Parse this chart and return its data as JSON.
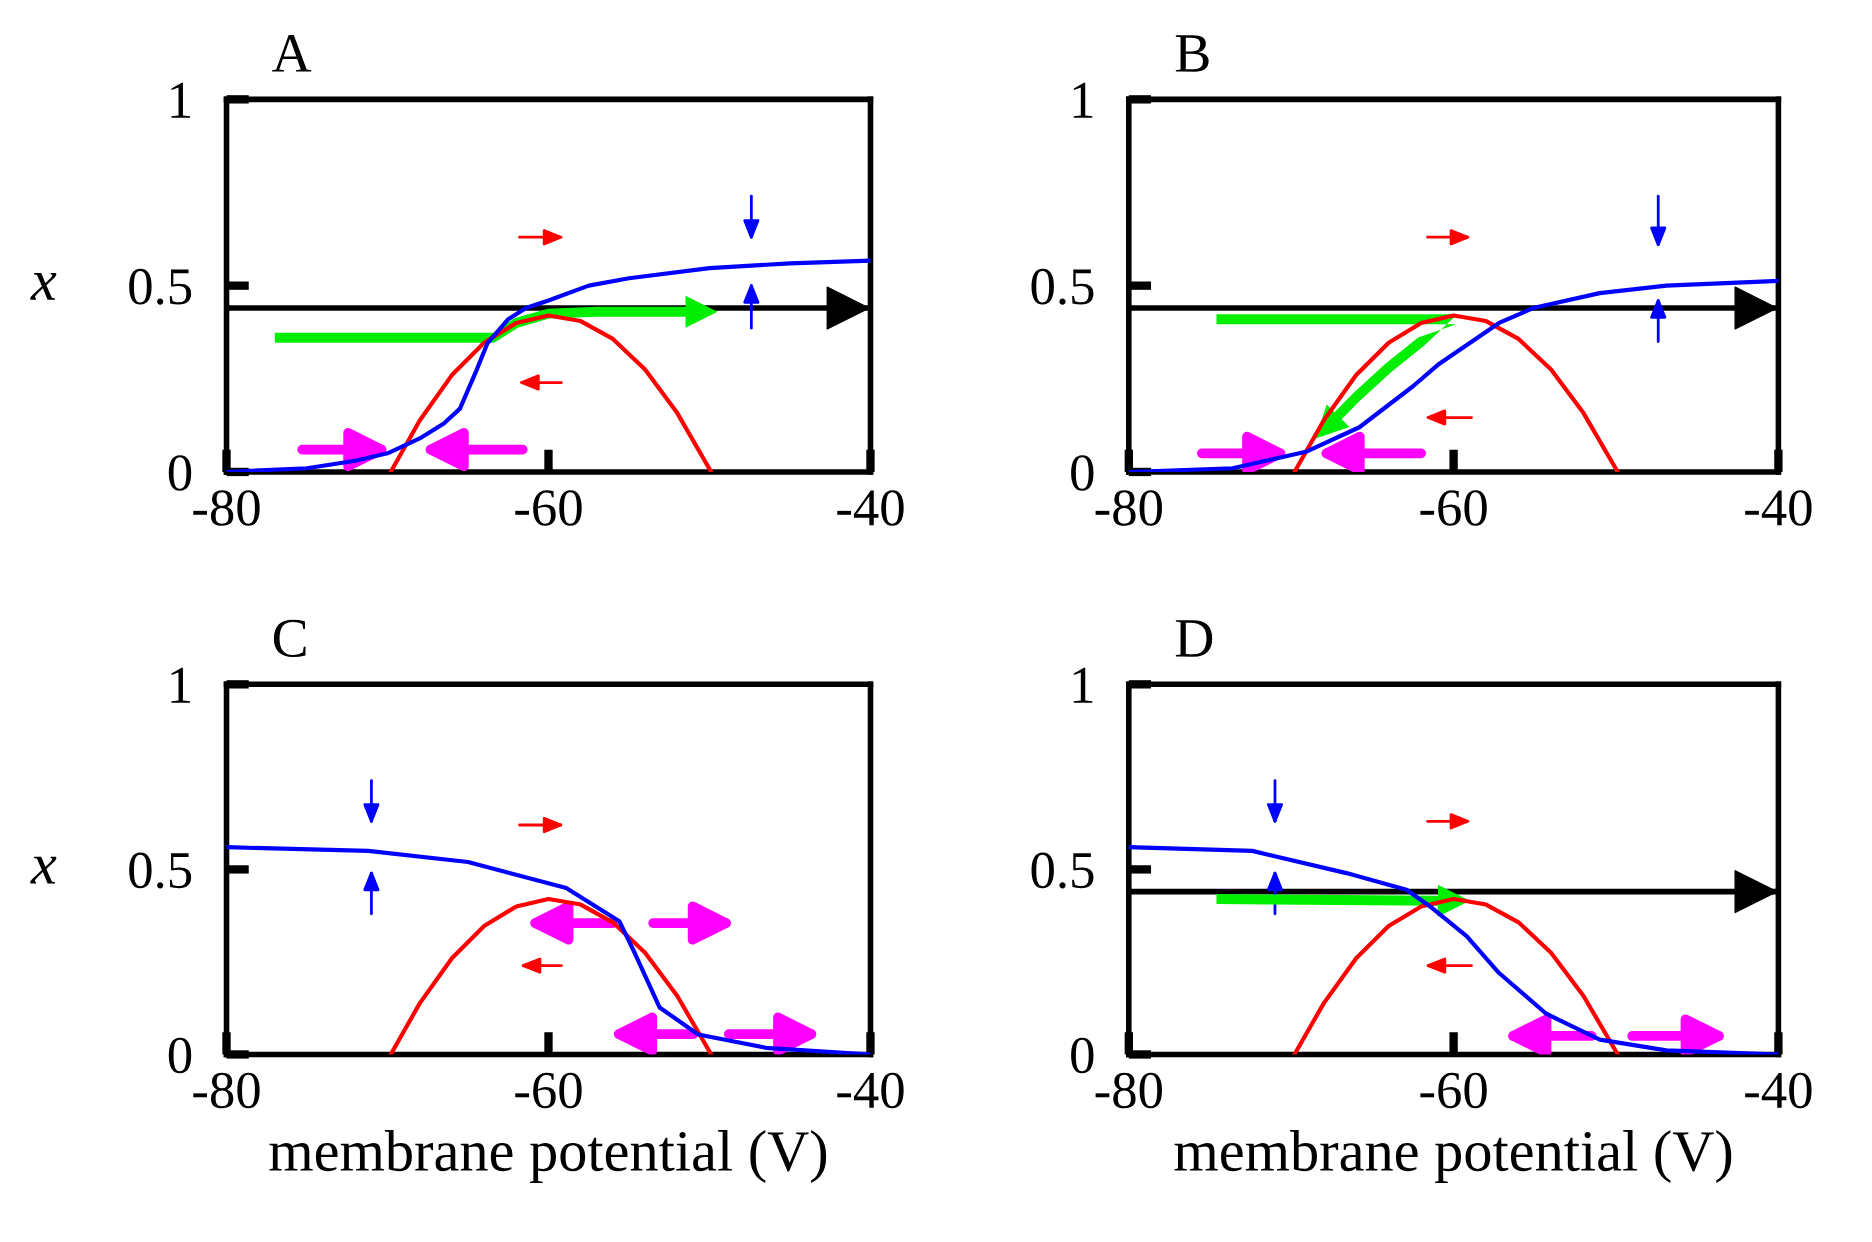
{
  "chart_data": [
    {
      "type": "line",
      "title": "A",
      "ylabel": "x",
      "xlim": [
        -80,
        -40
      ],
      "ylim": [
        0,
        1
      ],
      "xticks": [
        -80,
        -60,
        -40
      ],
      "yticks": [
        0,
        0.5,
        1
      ],
      "grid": false,
      "series": [
        {
          "color": "#ff0000",
          "x": [
            -69.8,
            -68,
            -66,
            -64,
            -62,
            -60,
            -58,
            -56,
            -54,
            -52,
            -50,
            -49.9
          ],
          "values": [
            0,
            0.138,
            0.26,
            0.347,
            0.4,
            0.42,
            0.405,
            0.357,
            0.275,
            0.158,
            0.008,
            0
          ]
        },
        {
          "color": "#0000ff",
          "x": [
            -80,
            -75,
            -72,
            -70,
            -68,
            -66.5,
            -65.5,
            -64.5,
            -63.8,
            -62.5,
            -61.4,
            -60,
            -57.5,
            -55,
            -50,
            -45,
            -40
          ],
          "values": [
            0,
            0.01,
            0.03,
            0.05,
            0.09,
            0.13,
            0.17,
            0.27,
            0.345,
            0.41,
            0.44,
            0.46,
            0.5,
            0.52,
            0.547,
            0.56,
            0.567
          ]
        }
      ],
      "ref_lines": [
        {
          "axis": "y",
          "value": 0.44,
          "color": "#000000"
        }
      ]
    },
    {
      "type": "line",
      "title": "B",
      "xlim": [
        -80,
        -40
      ],
      "ylim": [
        0,
        1
      ],
      "xticks": [
        -80,
        -60,
        -40
      ],
      "yticks": [
        0,
        0.5,
        1
      ],
      "grid": false,
      "series": [
        {
          "color": "#ff0000",
          "x": [
            -69.8,
            -68,
            -66,
            -64,
            -62,
            -60,
            -58,
            -56,
            -54,
            -52,
            -50,
            -49.9
          ],
          "values": [
            0,
            0.138,
            0.26,
            0.347,
            0.4,
            0.42,
            0.405,
            0.357,
            0.275,
            0.158,
            0.008,
            0
          ]
        },
        {
          "color": "#0000ff",
          "x": [
            -80,
            -73.6,
            -69.1,
            -65.8,
            -62.5,
            -60.9,
            -57.2,
            -55.1,
            -51,
            -46.9,
            -40
          ],
          "values": [
            0,
            0.01,
            0.054,
            0.12,
            0.23,
            0.29,
            0.4,
            0.44,
            0.48,
            0.5,
            0.513
          ]
        }
      ],
      "ref_lines": [
        {
          "axis": "y",
          "value": 0.44,
          "color": "#000000"
        }
      ]
    },
    {
      "type": "line",
      "title": "C",
      "ylabel": "x",
      "xlabel": "membrane potential (V)",
      "xlim": [
        -80,
        -40
      ],
      "ylim": [
        0,
        1
      ],
      "xticks": [
        -80,
        -60,
        -40
      ],
      "yticks": [
        0,
        0.5,
        1
      ],
      "grid": false,
      "series": [
        {
          "color": "#ff0000",
          "x": [
            -69.8,
            -68,
            -66,
            -64,
            -62,
            -60,
            -58,
            -56,
            -54,
            -52,
            -50,
            -49.9
          ],
          "values": [
            0,
            0.138,
            0.26,
            0.347,
            0.4,
            0.42,
            0.405,
            0.357,
            0.275,
            0.158,
            0.008,
            0
          ]
        },
        {
          "color": "#0000ff",
          "x": [
            -80,
            -71.2,
            -65,
            -58.9,
            -55.6,
            -54.6,
            -53.1,
            -50.7,
            -46.5,
            -40
          ],
          "values": [
            0.56,
            0.55,
            0.52,
            0.45,
            0.36,
            0.27,
            0.127,
            0.054,
            0.018,
            0
          ]
        }
      ]
    },
    {
      "type": "line",
      "title": "D",
      "xlabel": "membrane potential (V)",
      "xlim": [
        -80,
        -40
      ],
      "ylim": [
        0,
        1
      ],
      "xticks": [
        -80,
        -60,
        -40
      ],
      "yticks": [
        0,
        0.5,
        1
      ],
      "grid": false,
      "series": [
        {
          "color": "#ff0000",
          "x": [
            -69.8,
            -68,
            -66,
            -64,
            -62,
            -60,
            -58,
            -56,
            -54,
            -52,
            -50,
            -49.9
          ],
          "values": [
            0,
            0.138,
            0.26,
            0.347,
            0.4,
            0.42,
            0.405,
            0.357,
            0.275,
            0.158,
            0.008,
            0
          ]
        },
        {
          "color": "#0000ff",
          "x": [
            -80,
            -72.4,
            -66.6,
            -62.9,
            -61.3,
            -59.2,
            -57.2,
            -54.3,
            -51,
            -46.9,
            -40
          ],
          "values": [
            0.56,
            0.55,
            0.49,
            0.445,
            0.395,
            0.32,
            0.22,
            0.11,
            0.04,
            0.011,
            0
          ]
        }
      ],
      "ref_lines": [
        {
          "axis": "y",
          "value": 0.44,
          "color": "#000000"
        }
      ]
    }
  ]
}
